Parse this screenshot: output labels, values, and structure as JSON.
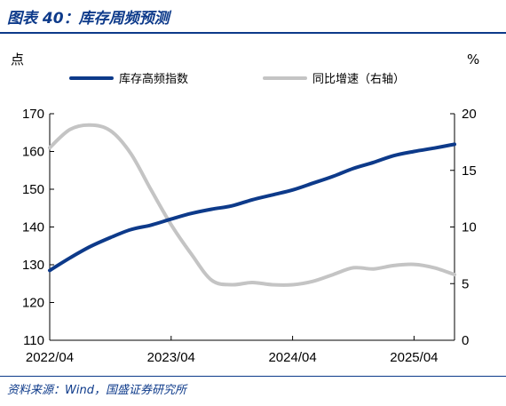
{
  "figure": {
    "title": "图表 40：库存周频预测",
    "source": "资料来源：Wind，国盛证券研究所"
  },
  "chart_data": {
    "type": "line",
    "left_unit": "点",
    "right_unit": "%",
    "x_tick_labels": [
      "2022/04",
      "2023/04",
      "2024/04",
      "2025/04"
    ],
    "x_range": [
      "2022/04",
      "2025/08"
    ],
    "left_axis": {
      "ylim": [
        110,
        170
      ],
      "ticks": [
        "110",
        "120",
        "130",
        "140",
        "150",
        "160",
        "170"
      ]
    },
    "right_axis": {
      "ylim": [
        0,
        20
      ],
      "ticks": [
        "0",
        "5",
        "10",
        "15",
        "20"
      ]
    },
    "grid": false,
    "legend_position": "top",
    "series": [
      {
        "name": "库存高频指数",
        "axis": "left",
        "color": "#0d3a8a",
        "x": [
          "2022/04",
          "2022/06",
          "2022/08",
          "2022/10",
          "2022/12",
          "2023/02",
          "2023/04",
          "2023/06",
          "2023/08",
          "2023/10",
          "2023/12",
          "2024/02",
          "2024/04",
          "2024/06",
          "2024/08",
          "2024/10",
          "2024/12",
          "2025/02",
          "2025/04",
          "2025/06",
          "2025/08"
        ],
        "values": [
          128.5,
          131.8,
          134.8,
          137.2,
          139.3,
          140.5,
          142.1,
          143.6,
          144.7,
          145.6,
          147.2,
          148.5,
          149.8,
          151.6,
          153.4,
          155.5,
          157.1,
          158.9,
          160.0,
          160.9,
          161.9
        ]
      },
      {
        "name": "同比增速（右轴）",
        "axis": "right",
        "color": "#c4c4c4",
        "x": [
          "2022/04",
          "2022/06",
          "2022/08",
          "2022/10",
          "2022/12",
          "2023/02",
          "2023/04",
          "2023/06",
          "2023/08",
          "2023/10",
          "2023/12",
          "2024/02",
          "2024/04",
          "2024/06",
          "2024/08",
          "2024/10",
          "2024/12",
          "2025/02",
          "2025/04",
          "2025/06",
          "2025/08"
        ],
        "values": [
          17.0,
          18.6,
          19.0,
          18.5,
          16.5,
          13.3,
          10.2,
          7.6,
          5.3,
          4.9,
          5.1,
          4.9,
          4.9,
          5.2,
          5.8,
          6.4,
          6.3,
          6.6,
          6.7,
          6.4,
          5.8
        ]
      }
    ]
  }
}
